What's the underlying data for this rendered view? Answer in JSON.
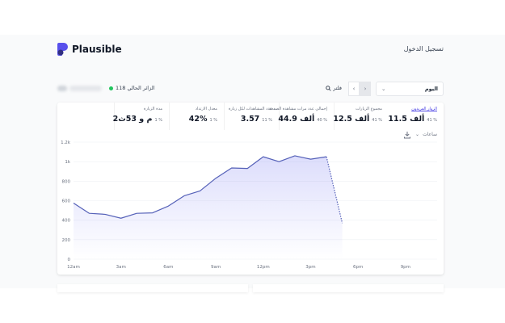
{
  "header": {
    "brand": "Plausible",
    "login_label": "تسجيل الدخول"
  },
  "toolbar": {
    "current_visitors": "118 الزائر الحالي",
    "filter_label": "فلتر",
    "date_range": "اليوم",
    "prev_icon": "chevron-left-icon",
    "next_icon": "chevron-right-icon"
  },
  "stats": [
    {
      "label": "الزوار الفريدون",
      "value": "11.5 ألف",
      "change": "41 %",
      "active": true
    },
    {
      "label": "مجموع الزيارات",
      "value": "12.5 ألف",
      "change": "41 %",
      "active": false
    },
    {
      "label": "إجمالي عدد مرات مشاهدة الصفحة",
      "value": "44.9 ألف",
      "change": "40 %",
      "active": false
    },
    {
      "label": "عدد المشاهدات لكل زيارة",
      "value": "3.57",
      "change": "11 %",
      "active": false
    },
    {
      "label": "معدل الارتداد",
      "value": "42%",
      "change": "1 %",
      "active": false
    },
    {
      "label": "مدة الزيارة",
      "value": "2م و 53ث",
      "change": "1 %",
      "active": false
    }
  ],
  "interval_label": "ساعات",
  "chart_data": {
    "type": "line",
    "x_ticks": [
      "12am",
      "3am",
      "6am",
      "9am",
      "12pm",
      "3pm",
      "6pm",
      "9pm"
    ],
    "y_ticks": [
      "0",
      "200",
      "400",
      "600",
      "800",
      "1k",
      "1.2k"
    ],
    "ylim": [
      0,
      1200
    ],
    "x": [
      "12am",
      "1am",
      "2am",
      "3am",
      "4am",
      "5am",
      "6am",
      "7am",
      "8am",
      "9am",
      "10am",
      "11am",
      "12pm",
      "1pm",
      "2pm",
      "3pm",
      "4pm",
      "5pm"
    ],
    "series": [
      {
        "values": [
          575,
          470,
          460,
          420,
          470,
          475,
          545,
          650,
          700,
          830,
          935,
          930,
          1050,
          1000,
          1060,
          1025,
          1050,
          370
        ]
      }
    ],
    "color": "#5561b8",
    "grid": true
  }
}
